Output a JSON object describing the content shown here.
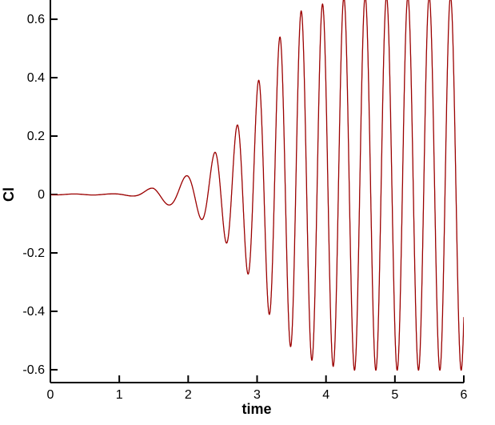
{
  "chart_data": {
    "type": "line",
    "title": "",
    "xlabel": "time",
    "ylabel": "Cl",
    "xlim": [
      0,
      6
    ],
    "ylim": [
      -0.644,
      0.666
    ],
    "x_ticks": [
      0,
      1,
      2,
      3,
      4,
      5,
      6
    ],
    "y_ticks": [
      -0.6,
      -0.4,
      -0.2,
      0,
      0.2,
      0.4,
      0.6
    ],
    "grid": false,
    "legend": false,
    "axis_color": "#000000",
    "line_color": "#9b0000",
    "description": "Lift coefficient Cl versus time: small perturbation grows exponentially from t~1.2 and saturates into a limit-cycle oscillation of amplitude ~0.65 by t~4",
    "series": [
      {
        "name": "Cl",
        "model": "amplitude-modulated cosine (growing oscillation saturating to limit cycle)",
        "envelope_t": [
          0,
          0.9,
          1.2,
          1.5,
          1.8,
          2.1,
          2.4,
          2.7,
          3.0,
          3.3,
          3.6,
          3.95,
          4.3,
          6.0
        ],
        "envelope_amp": [
          0.0015,
          0.002,
          0.006,
          0.025,
          0.045,
          0.075,
          0.14,
          0.22,
          0.36,
          0.5,
          0.59,
          0.615,
          0.64,
          0.64
        ],
        "mean_offset_fraction": 0.06,
        "freq_t": [
          0,
          1.8,
          2.3,
          2.6,
          3.0,
          6.0
        ],
        "freq_hz": [
          1.8,
          1.85,
          2.6,
          3.2,
          3.23,
          3.23
        ],
        "phase_peak_at_t": 3.95,
        "sample_dt": 0.0015
      }
    ]
  }
}
